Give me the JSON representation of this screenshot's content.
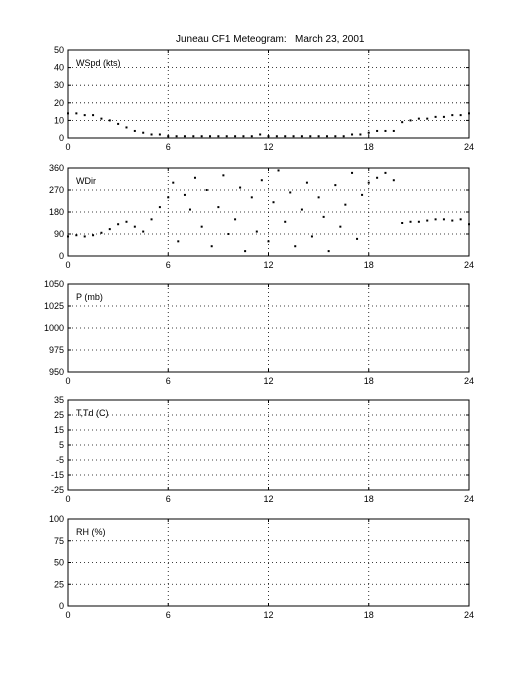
{
  "header": {
    "title": "Juneau CF1 Meteogram:",
    "date": "March 23, 2001"
  },
  "chart_data": [
    {
      "type": "scatter",
      "label": "WSpd (kts)",
      "xlim": [
        0,
        24
      ],
      "ylim": [
        0,
        50
      ],
      "x_ticks": [
        "0",
        "6",
        "12",
        "18",
        "24"
      ],
      "y_ticks": [
        "0",
        "10",
        "20",
        "30",
        "40",
        "50"
      ],
      "grid": true,
      "series": [
        {
          "x": [
            0,
            0.5,
            1,
            1.5,
            2,
            2.5,
            3,
            3.5,
            4,
            4.5,
            5,
            5.5,
            6,
            6.5,
            7,
            7.5,
            8,
            8.5,
            9,
            9.5,
            10,
            10.5,
            11,
            11.5,
            12,
            12.5,
            13,
            13.5,
            14,
            14.5,
            15,
            15.5,
            16,
            16.5,
            17,
            17.5,
            18,
            18.5,
            19,
            19.5,
            20,
            20.5,
            21,
            21.5,
            22,
            22.5,
            23,
            23.5,
            24
          ],
          "y": [
            14,
            14,
            13,
            13,
            11,
            10,
            8,
            6,
            4,
            3,
            2,
            2,
            1,
            1,
            1,
            1,
            1,
            1,
            1,
            1,
            1,
            1,
            1,
            2,
            1,
            1,
            1,
            1,
            1,
            1,
            1,
            1,
            1,
            1,
            2,
            2,
            3,
            4,
            4,
            4,
            9,
            10,
            11,
            11,
            12,
            12,
            13,
            13,
            14
          ]
        }
      ]
    },
    {
      "type": "scatter",
      "label": "WDir",
      "xlim": [
        0,
        24
      ],
      "ylim": [
        0,
        360
      ],
      "x_ticks": [
        "0",
        "6",
        "12",
        "18",
        "24"
      ],
      "y_ticks": [
        "0",
        "90",
        "180",
        "270",
        "360"
      ],
      "grid": true,
      "series": [
        {
          "x": [
            0,
            0.5,
            1,
            1.5,
            2,
            2.5,
            3,
            3.5,
            4,
            4.5,
            5,
            5.5,
            6,
            6.3,
            6.6,
            7,
            7.3,
            7.6,
            8,
            8.3,
            8.6,
            9,
            9.3,
            9.6,
            10,
            10.3,
            10.6,
            11,
            11.3,
            11.6,
            12,
            12.3,
            12.6,
            13,
            13.3,
            13.6,
            14,
            14.3,
            14.6,
            15,
            15.3,
            15.6,
            16,
            16.3,
            16.6,
            17,
            17.3,
            17.6,
            18,
            18.5,
            19,
            19.5,
            20,
            20.5,
            21,
            21.5,
            22,
            22.5,
            23,
            23.5,
            24
          ],
          "y": [
            80,
            85,
            80,
            85,
            95,
            110,
            130,
            140,
            120,
            100,
            150,
            200,
            240,
            300,
            60,
            250,
            190,
            320,
            120,
            270,
            40,
            200,
            330,
            90,
            150,
            280,
            20,
            240,
            100,
            310,
            60,
            220,
            350,
            140,
            260,
            40,
            190,
            300,
            80,
            240,
            160,
            20,
            290,
            120,
            210,
            340,
            70,
            250,
            300,
            320,
            340,
            310,
            135,
            140,
            140,
            145,
            150,
            150,
            145,
            150,
            130
          ]
        }
      ]
    },
    {
      "type": "scatter",
      "label": "P (mb)",
      "xlim": [
        0,
        24
      ],
      "ylim": [
        950,
        1050
      ],
      "x_ticks": [
        "0",
        "6",
        "12",
        "18",
        "24"
      ],
      "y_ticks": [
        "950",
        "975",
        "1000",
        "1025",
        "1050"
      ],
      "grid": true,
      "series": [
        {
          "x": [],
          "y": []
        }
      ]
    },
    {
      "type": "scatter",
      "label": "T,Td (C)",
      "xlim": [
        0,
        24
      ],
      "ylim": [
        -25,
        35
      ],
      "x_ticks": [
        "0",
        "6",
        "12",
        "18",
        "24"
      ],
      "y_ticks": [
        "-25",
        "-15",
        "-5",
        "5",
        "15",
        "25",
        "35"
      ],
      "grid": true,
      "series": [
        {
          "x": [],
          "y": []
        }
      ]
    },
    {
      "type": "scatter",
      "label": "RH (%)",
      "xlim": [
        0,
        24
      ],
      "ylim": [
        0,
        100
      ],
      "x_ticks": [
        "0",
        "6",
        "12",
        "18",
        "24"
      ],
      "y_ticks": [
        "0",
        "25",
        "50",
        "75",
        "100"
      ],
      "grid": true,
      "series": [
        {
          "x": [],
          "y": []
        }
      ]
    }
  ]
}
